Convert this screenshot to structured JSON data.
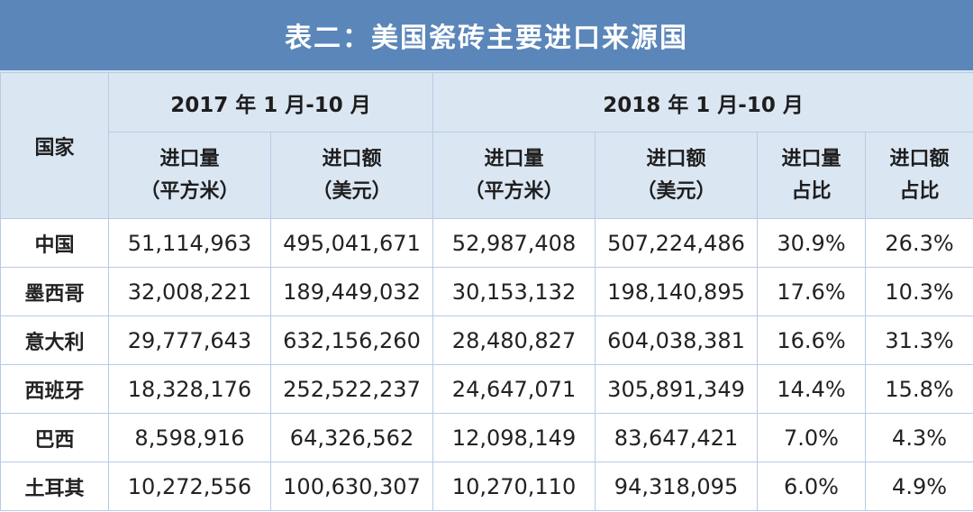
{
  "title": "表二：美国瓷砖主要进口来源国",
  "header": {
    "country": "国家",
    "period_2017": "2017 年 1 月-10 月",
    "period_2018": "2018 年 1 月-10 月",
    "columns_2017": [
      {
        "line1": "进口量",
        "line2": "（平方米）"
      },
      {
        "line1": "进口额",
        "line2": "（美元）"
      }
    ],
    "columns_2018": [
      {
        "line1": "进口量",
        "line2": "（平方米）"
      },
      {
        "line1": "进口额",
        "line2": "（美元）"
      },
      {
        "line1": "进口量",
        "line2": "占比"
      },
      {
        "line1": "进口额",
        "line2": "占比"
      }
    ]
  },
  "rows": [
    {
      "country": "中国",
      "vol_2017": "51,114,963",
      "val_2017": "495,041,671",
      "vol_2018": "52,987,408",
      "val_2018": "507,224,486",
      "vol_share": "30.9%",
      "val_share": "26.3%"
    },
    {
      "country": "墨西哥",
      "vol_2017": "32,008,221",
      "val_2017": "189,449,032",
      "vol_2018": "30,153,132",
      "val_2018": "198,140,895",
      "vol_share": "17.6%",
      "val_share": "10.3%"
    },
    {
      "country": "意大利",
      "vol_2017": "29,777,643",
      "val_2017": "632,156,260",
      "vol_2018": "28,480,827",
      "val_2018": "604,038,381",
      "vol_share": "16.6%",
      "val_share": "31.3%"
    },
    {
      "country": "西班牙",
      "vol_2017": "18,328,176",
      "val_2017": "252,522,237",
      "vol_2018": "24,647,071",
      "val_2018": "305,891,349",
      "vol_share": "14.4%",
      "val_share": "15.8%"
    },
    {
      "country": "巴西",
      "vol_2017": "8,598,916",
      "val_2017": "64,326,562",
      "vol_2018": "12,098,149",
      "val_2018": "83,647,421",
      "vol_share": "7.0%",
      "val_share": "4.3%"
    },
    {
      "country": "土耳其",
      "vol_2017": "10,272,556",
      "val_2017": "100,630,307",
      "vol_2018": "10,270,110",
      "val_2018": "94,318,095",
      "vol_share": "6.0%",
      "val_share": "4.9%"
    }
  ],
  "colors": {
    "title_bg": "#5b86b9",
    "header_bg": "#dbe6f3",
    "grid": "#b8cbe3"
  }
}
